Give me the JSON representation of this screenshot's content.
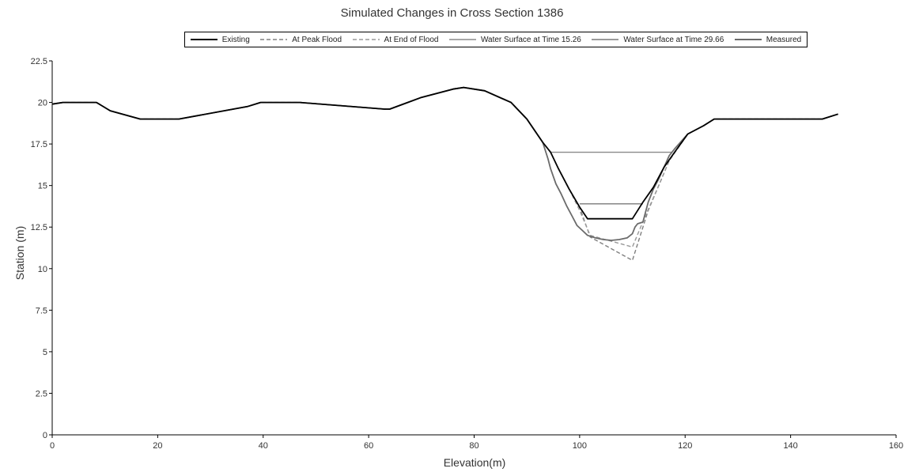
{
  "chart_data": {
    "type": "line",
    "title": "Simulated Changes in Cross Section 1386",
    "xlabel": "Elevation(m)",
    "ylabel": "Station (m)",
    "xlim": [
      0,
      160
    ],
    "ylim": [
      0,
      22.5
    ],
    "xticks": [
      "0",
      "20",
      "40",
      "60",
      "80",
      "100",
      "120",
      "140",
      "160"
    ],
    "yticks": [
      "0",
      "2.5",
      "5",
      "7.5",
      "10",
      "12.5",
      "15",
      "17.5",
      "20",
      "22.5"
    ],
    "legend_position": "top",
    "series": [
      {
        "name": "Existing",
        "color": "#000000",
        "style": "solid",
        "x": [
          0,
          2,
          8.4,
          11,
          16.7,
          24,
          37,
          39.5,
          47,
          63,
          64,
          70,
          76,
          78,
          82,
          87,
          90,
          93,
          94.5,
          96,
          98,
          100,
          101.5,
          110,
          112,
          114,
          116,
          118,
          120.5,
          123.5,
          125.5,
          146,
          149
        ],
        "y": [
          19.9,
          20,
          20,
          19.5,
          19,
          19,
          19.75,
          20,
          20,
          19.6,
          19.6,
          20.3,
          20.8,
          20.9,
          20.7,
          20,
          19,
          17.6,
          17,
          16,
          14.8,
          13.7,
          13,
          13,
          14,
          14.9,
          16.1,
          17,
          18.1,
          18.6,
          19,
          19,
          19.3
        ]
      },
      {
        "name": "At Peak Flood",
        "color": "#808080",
        "style": "dashed",
        "x": [
          0,
          2,
          8.4,
          11,
          16.7,
          24,
          37,
          39.5,
          47,
          63,
          64,
          70,
          76,
          78,
          82,
          87,
          90,
          93,
          94.5,
          96,
          98,
          100,
          102,
          110,
          113,
          115,
          117,
          120.5,
          123.5,
          125.5,
          146,
          149
        ],
        "y": [
          19.9,
          20,
          20,
          19.5,
          19,
          19,
          19.75,
          20,
          20,
          19.6,
          19.6,
          20.3,
          20.8,
          20.9,
          20.7,
          20,
          19,
          17.6,
          17,
          16,
          14.8,
          13.7,
          11.9,
          10.5,
          13.5,
          15,
          16.5,
          18.1,
          18.6,
          19,
          19,
          19.3
        ]
      },
      {
        "name": "At End of Flood",
        "color": "#999999",
        "style": "dashed",
        "x": [
          0,
          2,
          8.4,
          11,
          16.7,
          24,
          37,
          39.5,
          47,
          63,
          64,
          70,
          76,
          78,
          82,
          87,
          90,
          93,
          94.5,
          96,
          98,
          100,
          102,
          110,
          112.5,
          115,
          117,
          120.5,
          123.5,
          125.5,
          146,
          149
        ],
        "y": [
          19.9,
          20,
          20,
          19.5,
          19,
          19,
          19.75,
          20,
          20,
          19.6,
          19.6,
          20.3,
          20.8,
          20.9,
          20.7,
          20,
          19,
          17.6,
          17,
          16,
          14.8,
          13.5,
          12,
          11.3,
          13.2,
          15,
          16.5,
          18.1,
          18.6,
          19,
          19,
          19.3
        ]
      },
      {
        "name": "Water Surface at Time 15.26",
        "color": "#8a8a8a",
        "style": "solid",
        "x": [
          94.5,
          117.5
        ],
        "y": [
          17,
          17
        ]
      },
      {
        "name": "Water Surface at Time 29.66",
        "color": "#7a7a7a",
        "style": "solid",
        "x": [
          100,
          112
        ],
        "y": [
          13.9,
          13.9
        ]
      },
      {
        "name": "Measured",
        "color": "#6b6b6b",
        "style": "solid",
        "x": [
          0,
          2,
          8.4,
          11,
          16.7,
          24,
          37,
          39.5,
          47,
          63,
          64,
          70,
          76,
          78,
          82,
          87,
          90,
          93,
          94,
          94.5,
          95.5,
          96.5,
          97.5,
          98.5,
          99.5,
          100.5,
          101.5,
          103,
          104.5,
          106,
          107.5,
          109,
          110,
          110.5,
          111,
          112,
          112.5,
          113,
          114,
          115,
          116,
          117,
          118,
          120.5,
          123.5,
          125.5,
          146,
          149
        ],
        "y": [
          19.9,
          20,
          20,
          19.5,
          19,
          19,
          19.75,
          20,
          20,
          19.6,
          19.6,
          20.3,
          20.8,
          20.9,
          20.7,
          20,
          19,
          17.6,
          16.6,
          16,
          15.1,
          14.5,
          13.8,
          13.2,
          12.6,
          12.3,
          12,
          11.85,
          11.75,
          11.7,
          11.75,
          11.85,
          12.1,
          12.5,
          12.7,
          12.8,
          13.4,
          14,
          14.8,
          15.4,
          16.1,
          16.8,
          17.2,
          18.1,
          18.6,
          19,
          19,
          19.3
        ]
      }
    ]
  }
}
